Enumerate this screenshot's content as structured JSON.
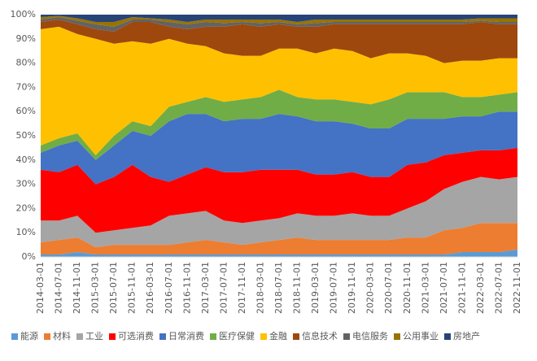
{
  "chart_data": {
    "type": "stacked-area",
    "x": [
      "2014-03-01",
      "2014-07-01",
      "2014-11-01",
      "2015-03-01",
      "2015-07-01",
      "2015-11-01",
      "2016-03-01",
      "2016-07-01",
      "2016-11-01",
      "2017-03-01",
      "2017-07-01",
      "2017-11-01",
      "2018-03-01",
      "2018-07-01",
      "2018-11-01",
      "2019-03-01",
      "2019-07-01",
      "2019-11-01",
      "2020-03-01",
      "2020-07-01",
      "2020-11-01",
      "2021-03-01",
      "2021-07-01",
      "2021-11-01",
      "2022-03-01",
      "2022-07-01",
      "2022-11-01"
    ],
    "ylim": [
      0,
      100
    ],
    "yticks": [
      {
        "value": 0,
        "label": "0%"
      },
      {
        "value": 10,
        "label": "10%"
      },
      {
        "value": 20,
        "label": "20%"
      },
      {
        "value": 30,
        "label": "30%"
      },
      {
        "value": 40,
        "label": "40%"
      },
      {
        "value": 50,
        "label": "50%"
      },
      {
        "value": 60,
        "label": "60%"
      },
      {
        "value": 70,
        "label": "70%"
      },
      {
        "value": 80,
        "label": "80%"
      },
      {
        "value": 90,
        "label": "90%"
      },
      {
        "value": 100,
        "label": "100%"
      }
    ],
    "series": [
      {
        "name": "能源",
        "color": "#5b9bd5",
        "values": [
          1,
          1,
          2,
          1,
          1,
          1,
          1,
          1,
          1,
          1,
          1,
          1,
          1,
          1,
          1,
          1,
          1,
          1,
          1,
          1,
          1,
          1,
          1,
          2,
          2,
          2,
          3
        ]
      },
      {
        "name": "材料",
        "color": "#ed7d31",
        "values": [
          5,
          6,
          6,
          3,
          4,
          4,
          4,
          4,
          5,
          6,
          5,
          4,
          5,
          6,
          7,
          6,
          6,
          6,
          6,
          6,
          7,
          7,
          10,
          10,
          12,
          12,
          11
        ]
      },
      {
        "name": "工业",
        "color": "#a5a5a5",
        "values": [
          9,
          8,
          9,
          6,
          6,
          7,
          8,
          12,
          12,
          12,
          9,
          9,
          9,
          9,
          10,
          10,
          10,
          11,
          10,
          10,
          12,
          15,
          17,
          19,
          19,
          18,
          19
        ]
      },
      {
        "name": "可选消费",
        "color": "#ff0000",
        "values": [
          21,
          20,
          21,
          20,
          22,
          26,
          20,
          14,
          16,
          18,
          20,
          21,
          21,
          20,
          18,
          17,
          17,
          17,
          16,
          16,
          18,
          16,
          14,
          12,
          11,
          12,
          12
        ]
      },
      {
        "name": "日常消费",
        "color": "#4472c4",
        "values": [
          7,
          11,
          10,
          10,
          13,
          14,
          17,
          25,
          25,
          22,
          21,
          22,
          21,
          23,
          22,
          22,
          22,
          20,
          20,
          20,
          19,
          18,
          15,
          15,
          14,
          16,
          15
        ]
      },
      {
        "name": "医疗保健",
        "color": "#70ad47",
        "values": [
          3,
          3,
          3,
          2,
          4,
          4,
          4,
          6,
          5,
          7,
          8,
          8,
          9,
          10,
          8,
          9,
          9,
          9,
          10,
          12,
          11,
          11,
          11,
          8,
          8,
          7,
          8
        ]
      },
      {
        "name": "金融",
        "color": "#ffc000",
        "values": [
          48,
          46,
          41,
          48,
          38,
          33,
          34,
          28,
          24,
          21,
          20,
          18,
          17,
          17,
          20,
          19,
          21,
          21,
          19,
          19,
          16,
          15,
          12,
          15,
          15,
          15,
          14
        ]
      },
      {
        "name": "信息技术",
        "color": "#9e480e",
        "values": [
          3,
          3,
          4,
          4,
          5,
          8,
          9,
          5,
          6,
          8,
          11,
          13,
          12,
          10,
          9,
          11,
          10,
          11,
          14,
          12,
          12,
          13,
          16,
          15,
          16,
          14,
          14
        ]
      },
      {
        "name": "电信服务",
        "color": "#636363",
        "values": [
          1,
          1,
          1.5,
          2,
          2,
          1,
          1,
          2,
          2,
          2,
          1.5,
          1,
          1.5,
          1,
          1,
          1.5,
          1,
          1,
          1,
          1,
          1,
          1,
          1,
          1,
          0.5,
          1,
          1
        ]
      },
      {
        "name": "公用事业",
        "color": "#997300",
        "values": [
          1,
          0.5,
          1,
          1,
          2,
          1,
          0.5,
          1,
          1,
          1,
          1.5,
          1,
          1.5,
          1,
          1,
          1.5,
          1,
          1,
          1,
          1,
          1,
          1,
          1,
          1,
          1,
          1.5,
          1.5
        ]
      },
      {
        "name": "房地产",
        "color": "#264478",
        "values": [
          1,
          0.5,
          1.5,
          3,
          3,
          1,
          1.5,
          2,
          3,
          2,
          2,
          2,
          2,
          2,
          3,
          2,
          2,
          2,
          2,
          2,
          2,
          2,
          2,
          2,
          1.5,
          1.5,
          1.5
        ]
      }
    ]
  }
}
